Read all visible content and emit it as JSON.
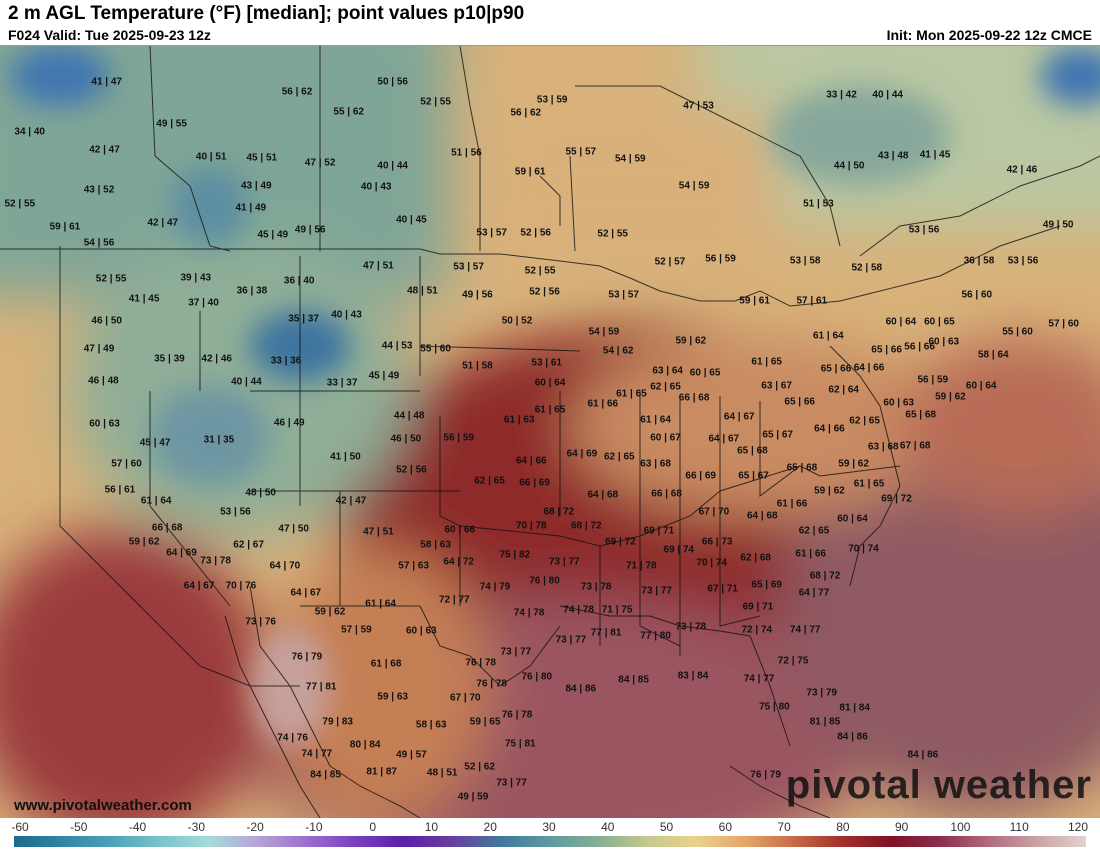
{
  "header": {
    "title": "2 m AGL Temperature (°F) [median]; point values p10|p90",
    "valid": "F024 Valid: Tue 2025-09-23 12z",
    "init": "Init: Mon 2025-09-22 12z CMCE"
  },
  "watermark": "pivotal weather",
  "url": "www.pivotalweather.com",
  "colorbar": {
    "ticks": [
      "-60",
      "-50",
      "-40",
      "-30",
      "-20",
      "-10",
      "0",
      "10",
      "20",
      "30",
      "40",
      "50",
      "60",
      "70",
      "80",
      "90",
      "100",
      "110",
      "120"
    ],
    "colors": [
      "#1b6a8e",
      "#2f86a5",
      "#4aa3b8",
      "#79c4cb",
      "#a6dcd6",
      "#b7a3d8",
      "#9c6fcf",
      "#7a3fbf",
      "#5b1fa8",
      "#6a3fa0",
      "#3f7a9b",
      "#5d9aa0",
      "#86ae93",
      "#c4c98e",
      "#e9d28c",
      "#e5a669",
      "#c86a46",
      "#a22f2c",
      "#7d1224",
      "#8a2d4c",
      "#b26a7d",
      "#c9a3a6",
      "#e3d2ce"
    ]
  },
  "points": [
    {
      "t": "41|47",
      "x": 0.097,
      "y": 0.047
    },
    {
      "t": "50|56",
      "x": 0.357,
      "y": 0.046
    },
    {
      "t": "56|62",
      "x": 0.27,
      "y": 0.06
    },
    {
      "t": "52|55",
      "x": 0.396,
      "y": 0.072
    },
    {
      "t": "53|59",
      "x": 0.502,
      "y": 0.07
    },
    {
      "t": "47|53",
      "x": 0.635,
      "y": 0.078
    },
    {
      "t": "33|42",
      "x": 0.765,
      "y": 0.064
    },
    {
      "t": "40|44",
      "x": 0.807,
      "y": 0.064
    },
    {
      "t": "34|40",
      "x": 0.027,
      "y": 0.112
    },
    {
      "t": "49|55",
      "x": 0.156,
      "y": 0.101
    },
    {
      "t": "55|62",
      "x": 0.317,
      "y": 0.085
    },
    {
      "t": "56|62",
      "x": 0.478,
      "y": 0.087
    },
    {
      "t": "42|47",
      "x": 0.095,
      "y": 0.135
    },
    {
      "t": "40|51",
      "x": 0.192,
      "y": 0.144
    },
    {
      "t": "45|51",
      "x": 0.238,
      "y": 0.145
    },
    {
      "t": "47|52",
      "x": 0.291,
      "y": 0.151
    },
    {
      "t": "40|44",
      "x": 0.357,
      "y": 0.155
    },
    {
      "t": "51|56",
      "x": 0.424,
      "y": 0.138
    },
    {
      "t": "55|57",
      "x": 0.528,
      "y": 0.137
    },
    {
      "t": "54|59",
      "x": 0.573,
      "y": 0.147
    },
    {
      "t": "43|48",
      "x": 0.812,
      "y": 0.143
    },
    {
      "t": "41|45",
      "x": 0.85,
      "y": 0.141
    },
    {
      "t": "44|50",
      "x": 0.772,
      "y": 0.156
    },
    {
      "t": "42|46",
      "x": 0.929,
      "y": 0.16
    },
    {
      "t": "43|52",
      "x": 0.09,
      "y": 0.187
    },
    {
      "t": "43|49",
      "x": 0.233,
      "y": 0.181
    },
    {
      "t": "40|43",
      "x": 0.342,
      "y": 0.182
    },
    {
      "t": "59|61",
      "x": 0.482,
      "y": 0.163
    },
    {
      "t": "54|59",
      "x": 0.631,
      "y": 0.181
    },
    {
      "t": "52|55",
      "x": 0.018,
      "y": 0.205
    },
    {
      "t": "41|49",
      "x": 0.228,
      "y": 0.21
    },
    {
      "t": "51|53",
      "x": 0.744,
      "y": 0.205
    },
    {
      "t": "42|47",
      "x": 0.148,
      "y": 0.229
    },
    {
      "t": "40|45",
      "x": 0.374,
      "y": 0.226
    },
    {
      "t": "59|61",
      "x": 0.059,
      "y": 0.235
    },
    {
      "t": "45|49",
      "x": 0.248,
      "y": 0.245
    },
    {
      "t": "49|56",
      "x": 0.282,
      "y": 0.238
    },
    {
      "t": "53|57",
      "x": 0.447,
      "y": 0.242
    },
    {
      "t": "52|56",
      "x": 0.487,
      "y": 0.242
    },
    {
      "t": "52|55",
      "x": 0.557,
      "y": 0.244
    },
    {
      "t": "53|56",
      "x": 0.84,
      "y": 0.238
    },
    {
      "t": "49|50",
      "x": 0.962,
      "y": 0.232
    },
    {
      "t": "54|56",
      "x": 0.09,
      "y": 0.255
    },
    {
      "t": "47|51",
      "x": 0.344,
      "y": 0.285
    },
    {
      "t": "53|57",
      "x": 0.426,
      "y": 0.286
    },
    {
      "t": "52|55",
      "x": 0.491,
      "y": 0.292
    },
    {
      "t": "52|57",
      "x": 0.609,
      "y": 0.28
    },
    {
      "t": "56|59",
      "x": 0.655,
      "y": 0.276
    },
    {
      "t": "53|58",
      "x": 0.732,
      "y": 0.278
    },
    {
      "t": "52|58",
      "x": 0.788,
      "y": 0.288
    },
    {
      "t": "36|58",
      "x": 0.89,
      "y": 0.279
    },
    {
      "t": "53|56",
      "x": 0.93,
      "y": 0.278
    },
    {
      "t": "52|55",
      "x": 0.101,
      "y": 0.302
    },
    {
      "t": "39|43",
      "x": 0.178,
      "y": 0.3
    },
    {
      "t": "36|40",
      "x": 0.272,
      "y": 0.304
    },
    {
      "t": "48|51",
      "x": 0.384,
      "y": 0.318
    },
    {
      "t": "49|56",
      "x": 0.434,
      "y": 0.322
    },
    {
      "t": "52|56",
      "x": 0.495,
      "y": 0.319
    },
    {
      "t": "53|57",
      "x": 0.567,
      "y": 0.323
    },
    {
      "t": "59|61",
      "x": 0.686,
      "y": 0.33
    },
    {
      "t": "57|61",
      "x": 0.738,
      "y": 0.33
    },
    {
      "t": "56|60",
      "x": 0.888,
      "y": 0.322
    },
    {
      "t": "41|45",
      "x": 0.131,
      "y": 0.328
    },
    {
      "t": "36|38",
      "x": 0.229,
      "y": 0.318
    },
    {
      "t": "37|40",
      "x": 0.185,
      "y": 0.333
    },
    {
      "t": "35|37",
      "x": 0.276,
      "y": 0.353
    },
    {
      "t": "40|43",
      "x": 0.315,
      "y": 0.349
    },
    {
      "t": "50|52",
      "x": 0.47,
      "y": 0.356
    },
    {
      "t": "46|50",
      "x": 0.097,
      "y": 0.356
    },
    {
      "t": "61|64",
      "x": 0.753,
      "y": 0.375
    },
    {
      "t": "60|64",
      "x": 0.819,
      "y": 0.357
    },
    {
      "t": "60|65",
      "x": 0.854,
      "y": 0.357
    },
    {
      "t": "55|60",
      "x": 0.925,
      "y": 0.37
    },
    {
      "t": "57|60",
      "x": 0.967,
      "y": 0.36
    },
    {
      "t": "54|59",
      "x": 0.549,
      "y": 0.371
    },
    {
      "t": "59|62",
      "x": 0.628,
      "y": 0.382
    },
    {
      "t": "44|53",
      "x": 0.361,
      "y": 0.389
    },
    {
      "t": "55|60",
      "x": 0.396,
      "y": 0.393
    },
    {
      "t": "60|63",
      "x": 0.858,
      "y": 0.383
    },
    {
      "t": "47|49",
      "x": 0.09,
      "y": 0.393
    },
    {
      "t": "54|62",
      "x": 0.562,
      "y": 0.395
    },
    {
      "t": "65|66",
      "x": 0.806,
      "y": 0.394
    },
    {
      "t": "56|66",
      "x": 0.836,
      "y": 0.39
    },
    {
      "t": "58|64",
      "x": 0.903,
      "y": 0.4
    },
    {
      "t": "35|39",
      "x": 0.154,
      "y": 0.406
    },
    {
      "t": "42|46",
      "x": 0.197,
      "y": 0.405
    },
    {
      "t": "33|36",
      "x": 0.26,
      "y": 0.408
    },
    {
      "t": "51|58",
      "x": 0.434,
      "y": 0.415
    },
    {
      "t": "53|61",
      "x": 0.497,
      "y": 0.411
    },
    {
      "t": "61|65",
      "x": 0.697,
      "y": 0.409
    },
    {
      "t": "63|64",
      "x": 0.607,
      "y": 0.421
    },
    {
      "t": "60|65",
      "x": 0.641,
      "y": 0.423
    },
    {
      "t": "65|66",
      "x": 0.76,
      "y": 0.418
    },
    {
      "t": "64|66",
      "x": 0.79,
      "y": 0.417
    },
    {
      "t": "46|48",
      "x": 0.094,
      "y": 0.434
    },
    {
      "t": "40|44",
      "x": 0.224,
      "y": 0.435
    },
    {
      "t": "33|37",
      "x": 0.311,
      "y": 0.436
    },
    {
      "t": "45|49",
      "x": 0.349,
      "y": 0.427
    },
    {
      "t": "60|64",
      "x": 0.5,
      "y": 0.437
    },
    {
      "t": "62|65",
      "x": 0.605,
      "y": 0.442
    },
    {
      "t": "63|67",
      "x": 0.706,
      "y": 0.44
    },
    {
      "t": "62|64",
      "x": 0.767,
      "y": 0.446
    },
    {
      "t": "56|59",
      "x": 0.848,
      "y": 0.432
    },
    {
      "t": "60|64",
      "x": 0.892,
      "y": 0.44
    },
    {
      "t": "61|65",
      "x": 0.574,
      "y": 0.451
    },
    {
      "t": "66|68",
      "x": 0.631,
      "y": 0.456
    },
    {
      "t": "65|66",
      "x": 0.727,
      "y": 0.461
    },
    {
      "t": "60|63",
      "x": 0.817,
      "y": 0.462
    },
    {
      "t": "59|62",
      "x": 0.864,
      "y": 0.455
    },
    {
      "t": "61|66",
      "x": 0.548,
      "y": 0.464
    },
    {
      "t": "60|63",
      "x": 0.095,
      "y": 0.49
    },
    {
      "t": "46|49",
      "x": 0.263,
      "y": 0.488
    },
    {
      "t": "44|48",
      "x": 0.372,
      "y": 0.479
    },
    {
      "t": "61|63",
      "x": 0.472,
      "y": 0.484
    },
    {
      "t": "61|65",
      "x": 0.5,
      "y": 0.471
    },
    {
      "t": "61|64",
      "x": 0.596,
      "y": 0.484
    },
    {
      "t": "64|67",
      "x": 0.672,
      "y": 0.481
    },
    {
      "t": "62|65",
      "x": 0.786,
      "y": 0.486
    },
    {
      "t": "65|68",
      "x": 0.837,
      "y": 0.478
    },
    {
      "t": "64|66",
      "x": 0.754,
      "y": 0.496
    },
    {
      "t": "45|47",
      "x": 0.141,
      "y": 0.514
    },
    {
      "t": "31|35",
      "x": 0.199,
      "y": 0.511
    },
    {
      "t": "46|50",
      "x": 0.369,
      "y": 0.509
    },
    {
      "t": "56|59",
      "x": 0.417,
      "y": 0.508
    },
    {
      "t": "60|67",
      "x": 0.605,
      "y": 0.508
    },
    {
      "t": "64|67",
      "x": 0.658,
      "y": 0.509
    },
    {
      "t": "65|67",
      "x": 0.707,
      "y": 0.504
    },
    {
      "t": "63|68",
      "x": 0.803,
      "y": 0.52
    },
    {
      "t": "67|68",
      "x": 0.832,
      "y": 0.518
    },
    {
      "t": "41|50",
      "x": 0.314,
      "y": 0.532
    },
    {
      "t": "64|69",
      "x": 0.529,
      "y": 0.528
    },
    {
      "t": "62|65",
      "x": 0.563,
      "y": 0.532
    },
    {
      "t": "65|68",
      "x": 0.684,
      "y": 0.525
    },
    {
      "t": "57|60",
      "x": 0.115,
      "y": 0.542
    },
    {
      "t": "64|66",
      "x": 0.483,
      "y": 0.537
    },
    {
      "t": "63|68",
      "x": 0.596,
      "y": 0.541
    },
    {
      "t": "65|68",
      "x": 0.729,
      "y": 0.546
    },
    {
      "t": "59|62",
      "x": 0.776,
      "y": 0.542
    },
    {
      "t": "52|56",
      "x": 0.374,
      "y": 0.549
    },
    {
      "t": "62|65",
      "x": 0.445,
      "y": 0.563
    },
    {
      "t": "66|69",
      "x": 0.486,
      "y": 0.566
    },
    {
      "t": "66|69",
      "x": 0.637,
      "y": 0.557
    },
    {
      "t": "65|67",
      "x": 0.685,
      "y": 0.557
    },
    {
      "t": "61|65",
      "x": 0.79,
      "y": 0.567
    },
    {
      "t": "56|61",
      "x": 0.109,
      "y": 0.575
    },
    {
      "t": "48|50",
      "x": 0.237,
      "y": 0.579
    },
    {
      "t": "64|68",
      "x": 0.548,
      "y": 0.581
    },
    {
      "t": "66|68",
      "x": 0.606,
      "y": 0.58
    },
    {
      "t": "59|62",
      "x": 0.754,
      "y": 0.576
    },
    {
      "t": "69|72",
      "x": 0.815,
      "y": 0.587
    },
    {
      "t": "61|64",
      "x": 0.142,
      "y": 0.589
    },
    {
      "t": "42|47",
      "x": 0.319,
      "y": 0.59
    },
    {
      "t": "61|66",
      "x": 0.72,
      "y": 0.593
    },
    {
      "t": "53|56",
      "x": 0.214,
      "y": 0.603
    },
    {
      "t": "68|72",
      "x": 0.508,
      "y": 0.603
    },
    {
      "t": "67|70",
      "x": 0.649,
      "y": 0.603
    },
    {
      "t": "64|68",
      "x": 0.693,
      "y": 0.609
    },
    {
      "t": "60|64",
      "x": 0.775,
      "y": 0.613
    },
    {
      "t": "66|68",
      "x": 0.152,
      "y": 0.624
    },
    {
      "t": "47|50",
      "x": 0.267,
      "y": 0.626
    },
    {
      "t": "60|66",
      "x": 0.418,
      "y": 0.627
    },
    {
      "t": "47|51",
      "x": 0.344,
      "y": 0.63
    },
    {
      "t": "70|78",
      "x": 0.483,
      "y": 0.622
    },
    {
      "t": "68|72",
      "x": 0.533,
      "y": 0.622
    },
    {
      "t": "69|71",
      "x": 0.599,
      "y": 0.628
    },
    {
      "t": "62|65",
      "x": 0.74,
      "y": 0.628
    },
    {
      "t": "59|62",
      "x": 0.131,
      "y": 0.642
    },
    {
      "t": "62|67",
      "x": 0.226,
      "y": 0.646
    },
    {
      "t": "58|63",
      "x": 0.396,
      "y": 0.646
    },
    {
      "t": "69|72",
      "x": 0.564,
      "y": 0.642
    },
    {
      "t": "66|73",
      "x": 0.652,
      "y": 0.643
    },
    {
      "t": "69|74",
      "x": 0.617,
      "y": 0.653
    },
    {
      "t": "70|74",
      "x": 0.785,
      "y": 0.652
    },
    {
      "t": "64|69",
      "x": 0.165,
      "y": 0.657
    },
    {
      "t": "75|82",
      "x": 0.468,
      "y": 0.659
    },
    {
      "t": "62|68",
      "x": 0.687,
      "y": 0.663
    },
    {
      "t": "61|66",
      "x": 0.737,
      "y": 0.658
    },
    {
      "t": "73|78",
      "x": 0.196,
      "y": 0.667
    },
    {
      "t": "64|70",
      "x": 0.259,
      "y": 0.673
    },
    {
      "t": "57|63",
      "x": 0.376,
      "y": 0.674
    },
    {
      "t": "64|72",
      "x": 0.417,
      "y": 0.669
    },
    {
      "t": "73|77",
      "x": 0.513,
      "y": 0.669
    },
    {
      "t": "71|78",
      "x": 0.583,
      "y": 0.673
    },
    {
      "t": "70|74",
      "x": 0.647,
      "y": 0.67
    },
    {
      "t": "76|80",
      "x": 0.495,
      "y": 0.693
    },
    {
      "t": "68|72",
      "x": 0.75,
      "y": 0.686
    },
    {
      "t": "64|67",
      "x": 0.181,
      "y": 0.699
    },
    {
      "t": "70|76",
      "x": 0.219,
      "y": 0.699
    },
    {
      "t": "64|67",
      "x": 0.278,
      "y": 0.708
    },
    {
      "t": "74|79",
      "x": 0.45,
      "y": 0.701
    },
    {
      "t": "73|78",
      "x": 0.542,
      "y": 0.701
    },
    {
      "t": "73|77",
      "x": 0.597,
      "y": 0.706
    },
    {
      "t": "67|71",
      "x": 0.657,
      "y": 0.704
    },
    {
      "t": "65|69",
      "x": 0.697,
      "y": 0.698
    },
    {
      "t": "64|77",
      "x": 0.74,
      "y": 0.709
    },
    {
      "t": "61|64",
      "x": 0.346,
      "y": 0.723
    },
    {
      "t": "72|77",
      "x": 0.413,
      "y": 0.718
    },
    {
      "t": "69|71",
      "x": 0.689,
      "y": 0.727
    },
    {
      "t": "59|62",
      "x": 0.3,
      "y": 0.733
    },
    {
      "t": "74|78",
      "x": 0.481,
      "y": 0.735
    },
    {
      "t": "74|78",
      "x": 0.526,
      "y": 0.73
    },
    {
      "t": "71|75",
      "x": 0.561,
      "y": 0.73
    },
    {
      "t": "73|76",
      "x": 0.237,
      "y": 0.746
    },
    {
      "t": "57|59",
      "x": 0.324,
      "y": 0.756
    },
    {
      "t": "60|63",
      "x": 0.383,
      "y": 0.758
    },
    {
      "t": "73|78",
      "x": 0.628,
      "y": 0.752
    },
    {
      "t": "72|74",
      "x": 0.688,
      "y": 0.757
    },
    {
      "t": "74|77",
      "x": 0.732,
      "y": 0.757
    },
    {
      "t": "73|77",
      "x": 0.519,
      "y": 0.77
    },
    {
      "t": "77|81",
      "x": 0.551,
      "y": 0.76
    },
    {
      "t": "77|80",
      "x": 0.596,
      "y": 0.764
    },
    {
      "t": "73|77",
      "x": 0.469,
      "y": 0.785
    },
    {
      "t": "76|79",
      "x": 0.279,
      "y": 0.792
    },
    {
      "t": "61|68",
      "x": 0.351,
      "y": 0.801
    },
    {
      "t": "76|78",
      "x": 0.437,
      "y": 0.799
    },
    {
      "t": "72|75",
      "x": 0.721,
      "y": 0.797
    },
    {
      "t": "76|80",
      "x": 0.488,
      "y": 0.818
    },
    {
      "t": "84|86",
      "x": 0.528,
      "y": 0.833
    },
    {
      "t": "84|85",
      "x": 0.576,
      "y": 0.821
    },
    {
      "t": "83|84",
      "x": 0.63,
      "y": 0.816
    },
    {
      "t": "74|77",
      "x": 0.69,
      "y": 0.82
    },
    {
      "t": "77|81",
      "x": 0.292,
      "y": 0.83
    },
    {
      "t": "76|78",
      "x": 0.447,
      "y": 0.827
    },
    {
      "t": "59|63",
      "x": 0.357,
      "y": 0.843
    },
    {
      "t": "67|70",
      "x": 0.423,
      "y": 0.845
    },
    {
      "t": "73|79",
      "x": 0.747,
      "y": 0.838
    },
    {
      "t": "75|80",
      "x": 0.704,
      "y": 0.856
    },
    {
      "t": "81|84",
      "x": 0.777,
      "y": 0.857
    },
    {
      "t": "79|83",
      "x": 0.307,
      "y": 0.875
    },
    {
      "t": "58|63",
      "x": 0.392,
      "y": 0.879
    },
    {
      "t": "59|65",
      "x": 0.441,
      "y": 0.876
    },
    {
      "t": "76|78",
      "x": 0.47,
      "y": 0.867
    },
    {
      "t": "81|85",
      "x": 0.75,
      "y": 0.876
    },
    {
      "t": "74|76",
      "x": 0.266,
      "y": 0.897
    },
    {
      "t": "80|84",
      "x": 0.332,
      "y": 0.905
    },
    {
      "t": "75|81",
      "x": 0.473,
      "y": 0.904
    },
    {
      "t": "84|86",
      "x": 0.775,
      "y": 0.895
    },
    {
      "t": "74|77",
      "x": 0.288,
      "y": 0.917
    },
    {
      "t": "49|57",
      "x": 0.374,
      "y": 0.919
    },
    {
      "t": "84|86",
      "x": 0.839,
      "y": 0.918
    },
    {
      "t": "52|62",
      "x": 0.436,
      "y": 0.934
    },
    {
      "t": "84|85",
      "x": 0.296,
      "y": 0.944
    },
    {
      "t": "81|87",
      "x": 0.347,
      "y": 0.941
    },
    {
      "t": "48|51",
      "x": 0.402,
      "y": 0.942
    },
    {
      "t": "73|77",
      "x": 0.465,
      "y": 0.955
    },
    {
      "t": "76|79",
      "x": 0.696,
      "y": 0.944
    },
    {
      "t": "49|59",
      "x": 0.43,
      "y": 0.973
    }
  ]
}
